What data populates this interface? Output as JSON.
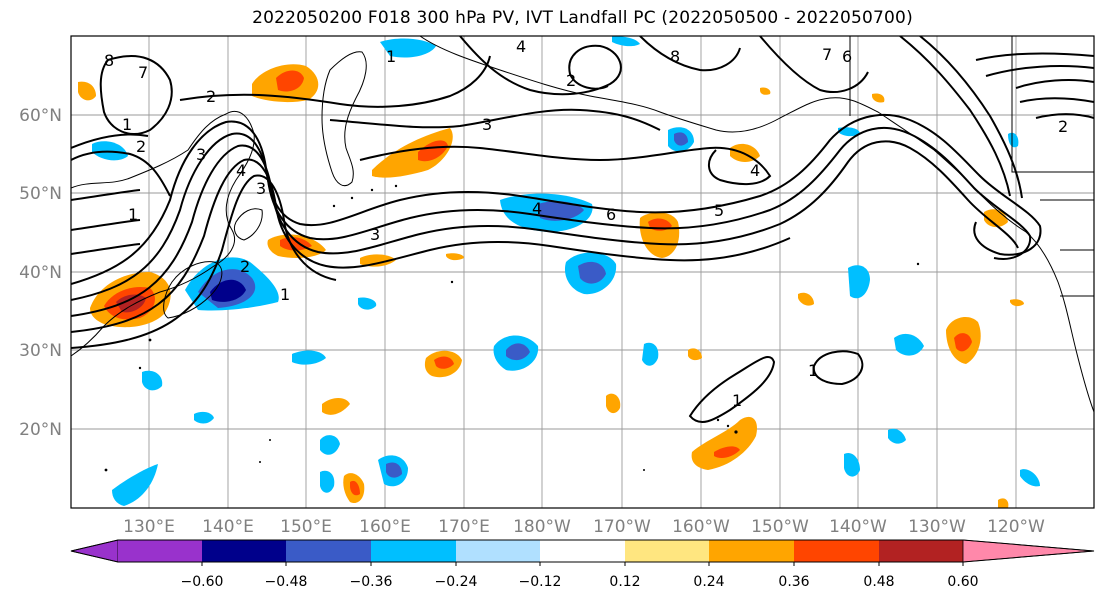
{
  "title": "2022050200 F018 300 hPa PV, IVT Landfall PC (2022050500 - 2022050700)",
  "map": {
    "lat_labels": [
      "60°N",
      "50°N",
      "40°N",
      "30°N",
      "20°N"
    ],
    "lon_labels": [
      "130°E",
      "140°E",
      "150°E",
      "160°E",
      "170°E",
      "180°W",
      "170°W",
      "160°W",
      "150°W",
      "140°W",
      "130°W",
      "120°W"
    ],
    "contour_labels": [
      "8",
      "7",
      "2",
      "1",
      "2",
      "3",
      "1",
      "4",
      "1",
      "2",
      "3",
      "1",
      "2",
      "3",
      "4",
      "4",
      "5",
      "6",
      "7",
      "8",
      "1",
      "1",
      "2",
      "3",
      "4",
      "6"
    ]
  },
  "colorbar": {
    "ticks": [
      "−0.60",
      "−0.48",
      "−0.36",
      "−0.24",
      "−0.12",
      "0.12",
      "0.24",
      "0.36",
      "0.48",
      "0.60"
    ],
    "colors": [
      "#9932cc",
      "#00008b",
      "#3a5bc7",
      "#00bfff",
      "#b0e0ff",
      "#ffffff",
      "#ffe680",
      "#ffa500",
      "#ff4500",
      "#b22222",
      "#ff88aa"
    ]
  }
}
